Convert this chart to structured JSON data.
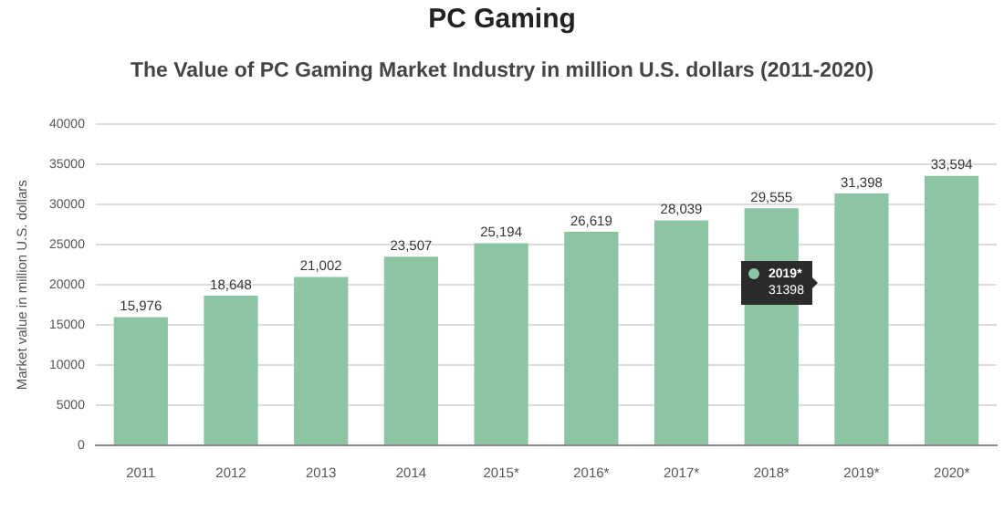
{
  "chart_data": {
    "type": "bar",
    "title": "PC Gaming",
    "subtitle": "The Value of PC Gaming Market Industry in million U.S. dollars (2011-2020)",
    "ylabel": "Market value in million U.S. dollars",
    "categories": [
      "2011",
      "2012",
      "2013",
      "2014",
      "2015*",
      "2016*",
      "2017*",
      "2018*",
      "2019*",
      "2020*"
    ],
    "values": [
      15976,
      18648,
      21002,
      23507,
      25194,
      26619,
      28039,
      29555,
      31398,
      33594
    ],
    "value_labels": [
      "15,976",
      "18,648",
      "21,002",
      "23,507",
      "25,194",
      "26,619",
      "28,039",
      "29,555",
      "31,398",
      "33,594"
    ],
    "color": "#8cc4a4",
    "ylim": [
      0,
      40000
    ],
    "yticks": [
      0,
      5000,
      10000,
      15000,
      20000,
      25000,
      30000,
      35000,
      40000
    ],
    "grid": "y",
    "legend": false,
    "annotations": [
      "2019*",
      "31398"
    ]
  }
}
